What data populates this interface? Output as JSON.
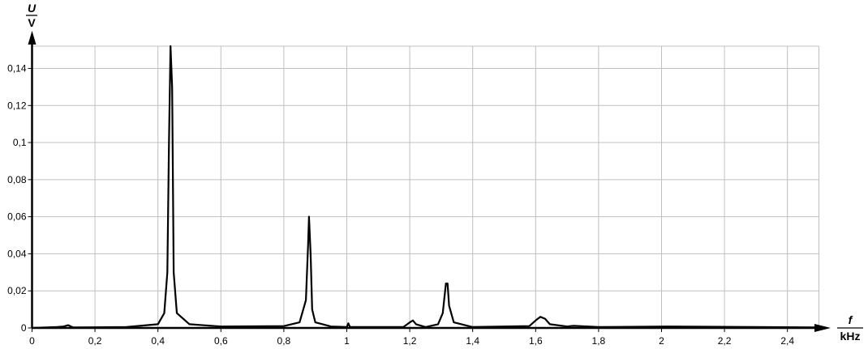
{
  "chart_data": {
    "type": "line",
    "xlabel": "f",
    "xunit": "kHz",
    "ylabel": "U",
    "yunit": "V",
    "xlim": [
      0,
      2.5
    ],
    "ylim": [
      0,
      0.152
    ],
    "grid": true,
    "xticks": [
      0,
      0.2,
      0.4,
      0.6,
      0.8,
      1,
      1.2,
      1.4,
      1.6,
      1.8,
      2,
      2.2,
      2.4
    ],
    "xtick_labels": [
      "0",
      "0,2",
      "0,4",
      "0,6",
      "0,8",
      "1",
      "1,2",
      "1,4",
      "1,6",
      "1,8",
      "2",
      "2,2",
      "2,4"
    ],
    "yticks": [
      0,
      0.02,
      0.04,
      0.06,
      0.08,
      0.1,
      0.12,
      0.14
    ],
    "ytick_labels": [
      "0",
      "0,02",
      "0,04",
      "0,06",
      "0,08",
      "0,1",
      "0,12",
      "0,14"
    ],
    "series": [
      {
        "color": "#000000",
        "points": [
          [
            0,
            0
          ],
          [
            0.08,
            0.0005
          ],
          [
            0.1,
            0.0008
          ],
          [
            0.115,
            0.0015
          ],
          [
            0.13,
            0.0003
          ],
          [
            0.3,
            0.0005
          ],
          [
            0.4,
            0.002
          ],
          [
            0.42,
            0.008
          ],
          [
            0.43,
            0.03
          ],
          [
            0.435,
            0.1
          ],
          [
            0.44,
            0.16
          ],
          [
            0.445,
            0.13
          ],
          [
            0.45,
            0.03
          ],
          [
            0.46,
            0.008
          ],
          [
            0.5,
            0.002
          ],
          [
            0.6,
            0.0008
          ],
          [
            0.8,
            0.001
          ],
          [
            0.85,
            0.003
          ],
          [
            0.87,
            0.015
          ],
          [
            0.877,
            0.045
          ],
          [
            0.88,
            0.06
          ],
          [
            0.885,
            0.04
          ],
          [
            0.89,
            0.01
          ],
          [
            0.9,
            0.003
          ],
          [
            0.95,
            0.0008
          ],
          [
            1.0,
            0.0005
          ],
          [
            1.005,
            0.0025
          ],
          [
            1.01,
            0.0005
          ],
          [
            1.18,
            0.0005
          ],
          [
            1.2,
            0.003
          ],
          [
            1.21,
            0.004
          ],
          [
            1.22,
            0.002
          ],
          [
            1.25,
            0.0005
          ],
          [
            1.29,
            0.002
          ],
          [
            1.305,
            0.008
          ],
          [
            1.315,
            0.024
          ],
          [
            1.32,
            0.024
          ],
          [
            1.325,
            0.012
          ],
          [
            1.34,
            0.003
          ],
          [
            1.4,
            0.0005
          ],
          [
            1.58,
            0.001
          ],
          [
            1.6,
            0.004
          ],
          [
            1.615,
            0.006
          ],
          [
            1.63,
            0.005
          ],
          [
            1.645,
            0.002
          ],
          [
            1.7,
            0.0008
          ],
          [
            1.72,
            0.0012
          ],
          [
            1.8,
            0.0005
          ],
          [
            2.02,
            0.0008
          ],
          [
            2.5,
            0.0003
          ]
        ]
      }
    ]
  }
}
